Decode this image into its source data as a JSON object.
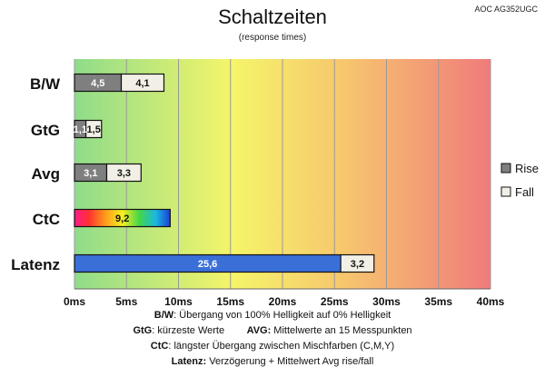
{
  "chart_data": {
    "type": "bar",
    "orientation": "horizontal",
    "stacked": true,
    "title": "Schaltzeiten",
    "subtitle": "(response times)",
    "monitor_model": "AOC AG352UGC",
    "categories": [
      "B/W",
      "GtG",
      "Avg",
      "CtC",
      "Latenz"
    ],
    "series": [
      {
        "name": "Rise",
        "values": [
          4.5,
          1.1,
          3.1,
          null,
          null
        ],
        "labels": [
          "4,5",
          "1,1",
          "3,1",
          "",
          ""
        ],
        "color": "#7f7f7f"
      },
      {
        "name": "Fall",
        "values": [
          4.1,
          1.5,
          3.3,
          null,
          3.2
        ],
        "labels": [
          "4,1",
          "1,5",
          "3,3",
          "",
          "3,2"
        ],
        "color": "#f2f0e6"
      }
    ],
    "single_values": {
      "CtC": {
        "value": 9.2,
        "label": "9,2",
        "fill": "rainbow"
      },
      "Latenz": {
        "value": 25.6,
        "label": "25,6",
        "color": "#3a6fd8"
      }
    },
    "x_axis": {
      "min": 0,
      "max": 40,
      "step": 5,
      "tick_labels": [
        "0ms",
        "5ms",
        "10ms",
        "15ms",
        "20ms",
        "25ms",
        "30ms",
        "35ms",
        "40ms"
      ]
    },
    "background_gradient": [
      "#8fdc8a",
      "#f5f56a",
      "#f7c66e",
      "#f07b7b"
    ],
    "grid": true,
    "legend_position": "right",
    "legend": [
      {
        "name": "Rise",
        "color": "#7f7f7f"
      },
      {
        "name": "Fall",
        "color": "#f2f0e6"
      }
    ]
  },
  "footer": {
    "line1": {
      "label": "B/W",
      "text": ":  Übergang von 100% Helligkeit auf 0% Helligkeit"
    },
    "line2": {
      "label1": "GtG",
      "text1": ": kürzeste  Werte",
      "label2": "AVG:",
      "text2": " Mittelwerte  an 15 Messpunkten"
    },
    "line3": {
      "label": "CtC",
      "text": ": längster Übergang  zwischen Mischfarben (C,M,Y)"
    },
    "line4": {
      "label": "Latenz:",
      "text": " Verzögerung  + Mittelwert Avg rise/fall"
    }
  }
}
